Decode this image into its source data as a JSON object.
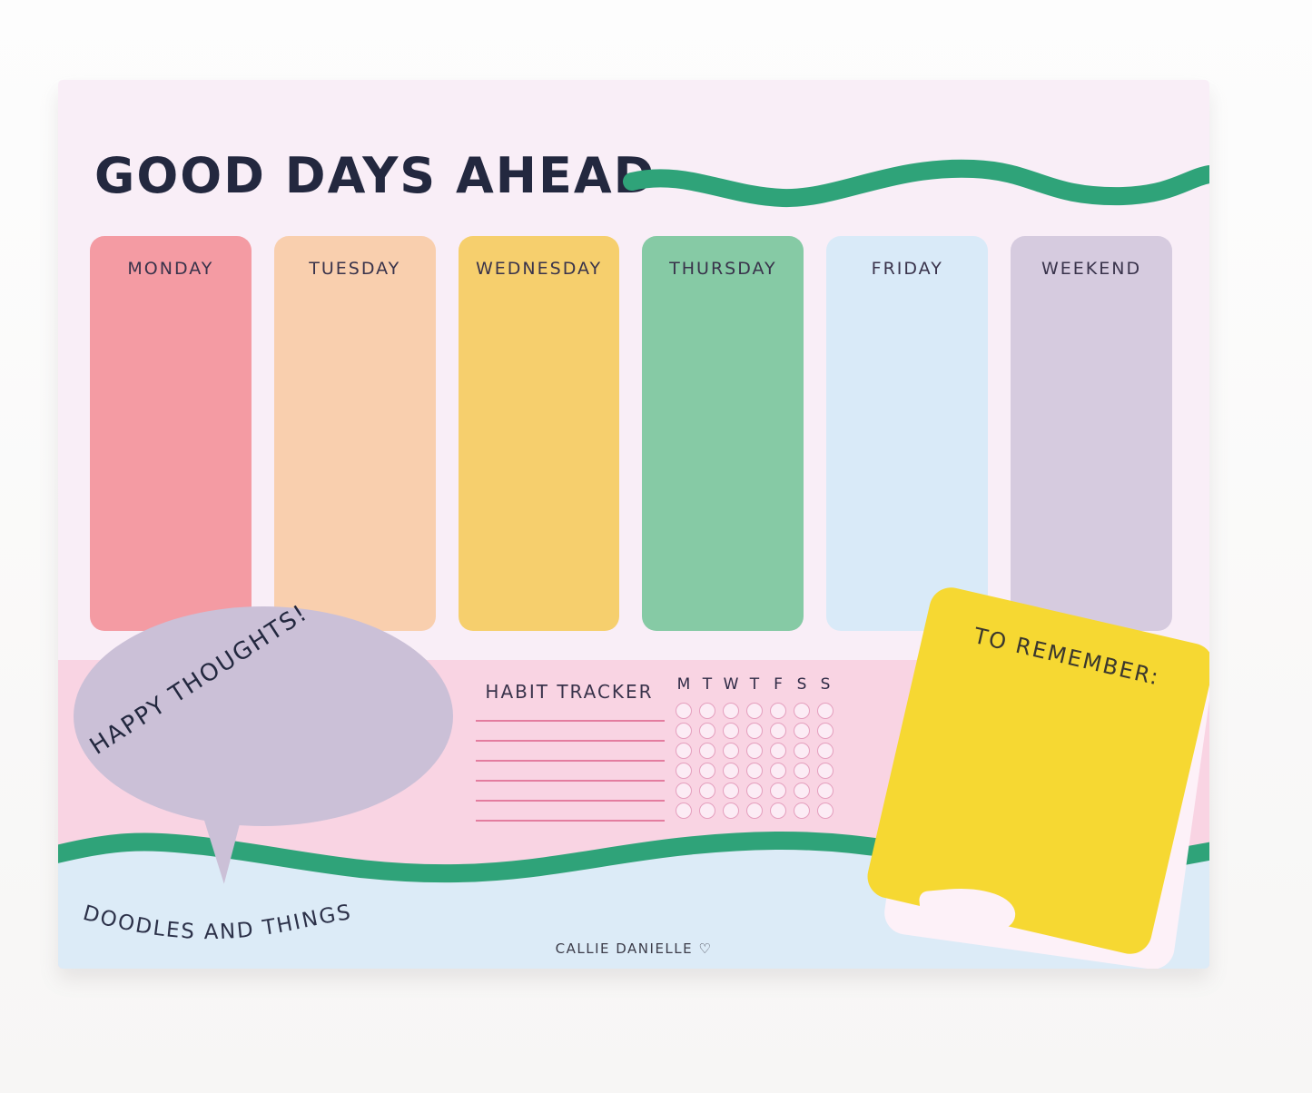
{
  "title": "GOOD DAYS AHEAD",
  "week": {
    "columns": [
      {
        "label": "MONDAY",
        "color": "#f49ba3"
      },
      {
        "label": "TUESDAY",
        "color": "#f9cfae"
      },
      {
        "label": "WEDNESDAY",
        "color": "#f6cf6d"
      },
      {
        "label": "THURSDAY",
        "color": "#86caa5"
      },
      {
        "label": "FRIDAY",
        "color": "#d9eaf8"
      },
      {
        "label": "WEEKEND",
        "color": "#d6cbdf"
      }
    ]
  },
  "bubble": {
    "label": "HAPPY THOUGHTS!",
    "color": "#cbc0d7"
  },
  "habit_tracker": {
    "title": "HABIT TRACKER",
    "day_initials": [
      "M",
      "T",
      "W",
      "T",
      "F",
      "S",
      "S"
    ],
    "rows": 6,
    "columns": 7,
    "lines_count": 6
  },
  "note": {
    "label": "TO REMEMBER:",
    "color": "#f6d832"
  },
  "doodles": {
    "label": "DOODLES AND THINGS"
  },
  "footer": {
    "credit": "CALLIE DANIELLE ♡"
  },
  "colors": {
    "pad_background": "#f9eef7",
    "pink_band": "#f9d4e3",
    "blue_band": "#dcebf7",
    "wave_green": "#2fa379",
    "title_ink": "#23283f",
    "note_yellow": "#f6d832",
    "bubble_lavender": "#cbc0d7",
    "tracker_line": "#e37d9f",
    "tracker_circle_stroke": "#e59fbe",
    "tracker_circle_fill": "#fcecf5"
  }
}
